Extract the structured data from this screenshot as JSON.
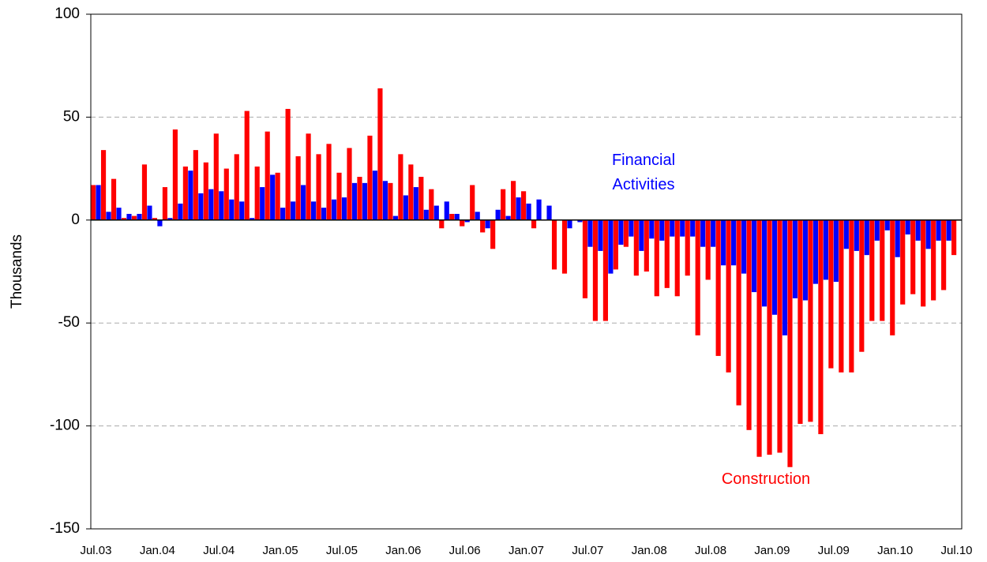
{
  "chart_data": {
    "type": "bar",
    "ylabel": "Thousands",
    "categories": [
      "Jul.03",
      null,
      null,
      null,
      null,
      null,
      "Jan.04",
      null,
      null,
      null,
      null,
      null,
      "Jul.04",
      null,
      null,
      null,
      null,
      null,
      "Jan.05",
      null,
      null,
      null,
      null,
      null,
      "Jul.05",
      null,
      null,
      null,
      null,
      null,
      "Jan.06",
      null,
      null,
      null,
      null,
      null,
      "Jul.06",
      null,
      null,
      null,
      null,
      null,
      "Jan.07",
      null,
      null,
      null,
      null,
      null,
      "Jul.07",
      null,
      null,
      null,
      null,
      null,
      "Jan.08",
      null,
      null,
      null,
      null,
      null,
      "Jul.08",
      null,
      null,
      null,
      null,
      null,
      "Jan.09",
      null,
      null,
      null,
      null,
      null,
      "Jul.09",
      null,
      null,
      null,
      null,
      null,
      "Jan.10",
      null,
      null,
      null,
      null,
      null,
      "Jul.10"
    ],
    "series": [
      {
        "name": "Construction",
        "color": "#ff0000",
        "values": [
          17,
          34,
          20,
          1,
          2,
          27,
          1,
          16,
          44,
          26,
          34,
          28,
          42,
          25,
          32,
          53,
          26,
          43,
          23,
          54,
          31,
          42,
          32,
          37,
          23,
          35,
          21,
          41,
          64,
          18,
          32,
          27,
          21,
          15,
          -4,
          3,
          -3,
          17,
          -6,
          -14,
          15,
          19,
          14,
          -4,
          0,
          -24,
          -26,
          0,
          -38,
          -49,
          -49,
          -24,
          -13,
          -27,
          -25,
          -37,
          -33,
          -37,
          -27,
          -56,
          -29,
          -66,
          -74,
          -90,
          -102,
          -115,
          -114,
          -113,
          -120,
          -99,
          -98,
          -104,
          -72,
          -74,
          -74,
          -64,
          -49,
          -49,
          -56,
          -41,
          -36,
          -42,
          -39,
          -34,
          -17
        ]
      },
      {
        "name": "Financial Activities",
        "color": "#0000ff",
        "values": [
          17,
          4,
          6,
          3,
          3,
          7,
          -3,
          1,
          8,
          24,
          13,
          15,
          14,
          10,
          9,
          1,
          16,
          22,
          6,
          9,
          17,
          9,
          6,
          10,
          11,
          18,
          18,
          24,
          19,
          2,
          12,
          16,
          5,
          7,
          9,
          3,
          -1,
          4,
          -4,
          5,
          2,
          11,
          8,
          10,
          7,
          0,
          -4,
          -1,
          -13,
          -15,
          -26,
          -12,
          -8,
          -15,
          -9,
          -10,
          -8,
          -8,
          -8,
          -13,
          -13,
          -22,
          -22,
          -26,
          -35,
          -42,
          -46,
          -56,
          -38,
          -39,
          -31,
          -29,
          -30,
          -14,
          -15,
          -17,
          -10,
          -5,
          -18,
          -7,
          -10,
          -14,
          -10,
          -10,
          null
        ]
      }
    ],
    "ylim": [
      -150,
      100
    ],
    "yticks": [
      -150,
      -100,
      -50,
      0,
      50,
      100
    ],
    "grid": true
  }
}
